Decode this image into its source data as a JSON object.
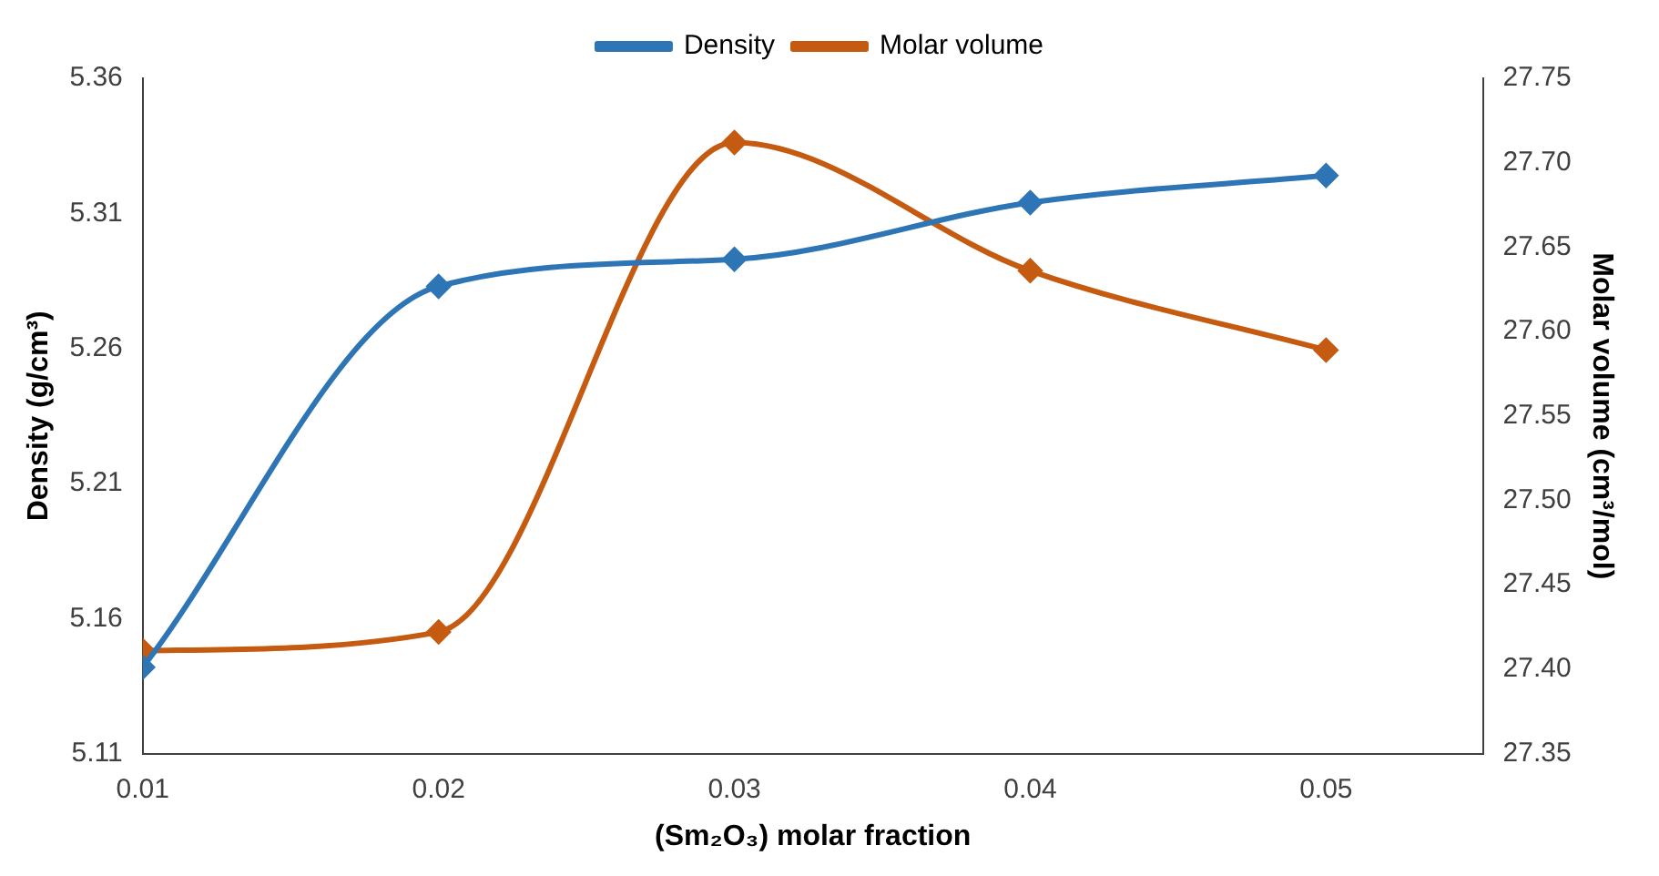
{
  "chart_data": {
    "type": "line",
    "xlabel": "(Sm₂O₃) molar fraction",
    "ylabel": "Density (g/cm³)",
    "y2label": "Molar volume (cm³/mol)",
    "x": [
      0.01,
      0.02,
      0.03,
      0.04,
      0.05
    ],
    "series": [
      {
        "name": "Density",
        "color": "#2e75b6",
        "values": [
          5.142,
          5.283,
          5.293,
          5.314,
          5.324
        ]
      },
      {
        "name": "Molar volume",
        "color": "#c55a11",
        "axis": "y2",
        "values": [
          27.411,
          27.422,
          27.712,
          27.636,
          27.589
        ]
      }
    ],
    "xlim": [
      0.01,
      0.0553
    ],
    "xticks": [
      0.01,
      0.02,
      0.03,
      0.04,
      0.05
    ],
    "ylim": [
      5.11,
      5.36
    ],
    "yticks": [
      5.11,
      5.16,
      5.21,
      5.26,
      5.31,
      5.36
    ],
    "y2lim": [
      27.35,
      27.75
    ],
    "y2ticks": [
      {
        "value": 27.35,
        "label": "27.35"
      },
      {
        "value": 27.4,
        "label": "27.40"
      },
      {
        "value": 27.45,
        "label": "27.45"
      },
      {
        "value": 27.5,
        "label": "27.50"
      },
      {
        "value": 27.55,
        "label": "27.55"
      },
      {
        "value": 27.6,
        "label": "27.60"
      },
      {
        "value": 27.65,
        "label": "27.65"
      },
      {
        "value": 27.7,
        "label": "27.70"
      },
      {
        "value": 27.75,
        "label": "27.75"
      }
    ],
    "legend": "top",
    "grid": false,
    "marker": "diamond",
    "line_style": "solid"
  }
}
